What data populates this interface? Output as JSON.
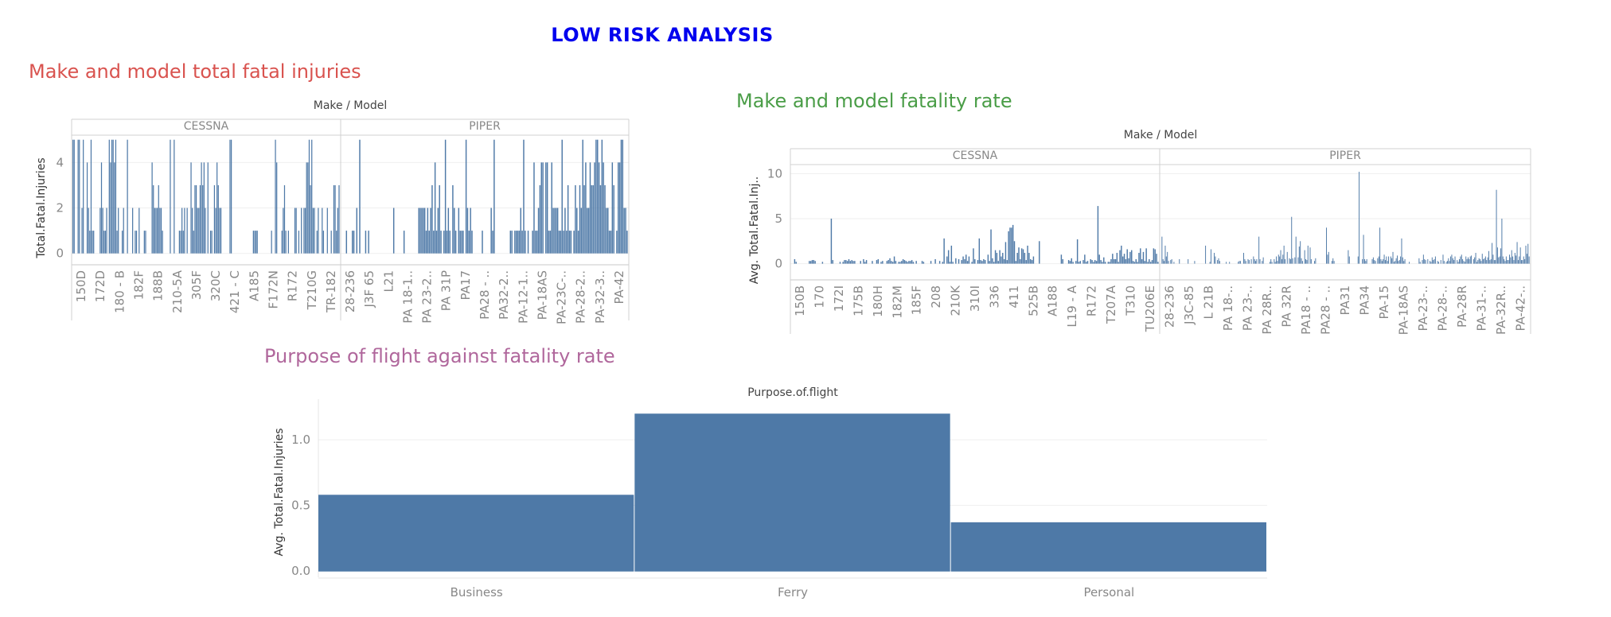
{
  "page": {
    "title": "LOW RISK ANALYSIS"
  },
  "colors": {
    "title": "#0000ee",
    "chart1_title": "#d9534f",
    "chart2_title": "#4a9d47",
    "chart3_title": "#b0679c",
    "bar": "#4e79a7"
  },
  "chart_data": [
    {
      "type": "bar",
      "title": "Make and model total fatal injuries",
      "column_header": "Make / Model",
      "ylabel": "Total.Fatal.Injuries",
      "ylim": [
        -0.5,
        5.2
      ],
      "yticks": [
        0,
        2,
        4
      ],
      "grid": true,
      "panes": [
        {
          "name": "CESSNA",
          "tick_labels": [
            "150D",
            "172D",
            "180 - B",
            "182F",
            "188B",
            "210-5A",
            "305F",
            "320C",
            "421 - C",
            "A185",
            "F172N",
            "R172",
            "T210G",
            "TR-182"
          ],
          "values": [
            5,
            5,
            0,
            0,
            5,
            5,
            0,
            2,
            5,
            0,
            0,
            4,
            2,
            1,
            5,
            1,
            1,
            0,
            0,
            0,
            0,
            2,
            4,
            2,
            1,
            1,
            2,
            0,
            5,
            4,
            5,
            5,
            4,
            5,
            1,
            2,
            0,
            0,
            1,
            2,
            0,
            0,
            5,
            0,
            0,
            0,
            2,
            0,
            1,
            1,
            0,
            2,
            0,
            0,
            0,
            1,
            1,
            0,
            0,
            0,
            0,
            4,
            3,
            2,
            2,
            2,
            3,
            2,
            2,
            1,
            0,
            0,
            0,
            0,
            0,
            5,
            0,
            0,
            5,
            0,
            0,
            0,
            1,
            1,
            2,
            1,
            2,
            0,
            2,
            0,
            0,
            4,
            2,
            1,
            3,
            3,
            2,
            2,
            3,
            4,
            3,
            4,
            2,
            0,
            4,
            0,
            1,
            1,
            0,
            3,
            2,
            4,
            3,
            2,
            2,
            0,
            0,
            0,
            0,
            0,
            0,
            5,
            5,
            0,
            0,
            0,
            0,
            0,
            0,
            0,
            0,
            0,
            0,
            0,
            0,
            0,
            0,
            0,
            0,
            1,
            1,
            1,
            1,
            0,
            0,
            0,
            0,
            0,
            0,
            0,
            0,
            0,
            0,
            1,
            0,
            0,
            5,
            4,
            0,
            0,
            0,
            1,
            2,
            3,
            1,
            0,
            1,
            0,
            0,
            0,
            0,
            2,
            2,
            0,
            1,
            0,
            2,
            0,
            2,
            2,
            4,
            4,
            5,
            3,
            5,
            2,
            2,
            0,
            1,
            2,
            0,
            0,
            2,
            1,
            0,
            0,
            2,
            0,
            0,
            1,
            0,
            3,
            3,
            1,
            2,
            3
          ]
        },
        {
          "name": "PIPER",
          "tick_labels": [
            "28-236",
            "J3F 65",
            "L21",
            "PA 18-1..",
            "PA 23-2..",
            "PA 31P",
            "PA17",
            "PA28 - ..",
            "PA32-2..",
            "PA-12-1..",
            "PA-18AS",
            "PA-23C-..",
            "PA-28-2..",
            "PA-32-3..",
            "PA-42"
          ],
          "values": [
            0,
            0,
            0,
            1,
            0,
            0,
            0,
            1,
            1,
            0,
            2,
            0,
            5,
            0,
            0,
            0,
            1,
            0,
            1,
            0,
            0,
            0,
            0,
            0,
            0,
            0,
            0,
            0,
            0,
            0,
            0,
            0,
            0,
            0,
            0,
            2,
            0,
            0,
            0,
            0,
            0,
            0,
            1,
            0,
            0,
            0,
            0,
            0,
            0,
            0,
            0,
            0,
            2,
            2,
            2,
            2,
            2,
            1,
            2,
            1,
            2,
            3,
            1,
            4,
            1,
            2,
            3,
            1,
            0,
            1,
            5,
            1,
            2,
            1,
            0,
            3,
            2,
            1,
            0,
            2,
            1,
            1,
            1,
            0,
            5,
            2,
            1,
            2,
            1,
            0,
            0,
            0,
            0,
            0,
            0,
            1,
            0,
            0,
            0,
            0,
            0,
            2,
            1,
            5,
            0,
            0,
            0,
            0,
            0,
            0,
            0,
            0,
            0,
            0,
            1,
            1,
            0,
            1,
            1,
            1,
            1,
            2,
            1,
            5,
            1,
            0,
            1,
            0,
            0,
            1,
            4,
            1,
            1,
            2,
            3,
            4,
            4,
            0,
            4,
            4,
            1,
            1,
            4,
            2,
            2,
            2,
            2,
            1,
            1,
            5,
            1,
            2,
            1,
            3,
            1,
            1,
            0,
            1,
            3,
            2,
            1,
            3,
            2,
            5,
            3,
            4,
            2,
            2,
            4,
            3,
            3,
            4,
            5,
            5,
            4,
            3,
            5,
            4,
            3,
            2,
            2,
            1,
            1,
            4,
            3,
            0,
            1,
            4,
            4,
            5,
            5,
            2,
            2,
            1
          ]
        }
      ]
    },
    {
      "type": "bar",
      "title": "Make and model fatality rate",
      "column_header": "Make / Model",
      "ylabel": "Avg. Total.Fatal.Inj..",
      "ylim": [
        -1.8,
        11
      ],
      "yticks": [
        0,
        5,
        10
      ],
      "grid": true,
      "panes": [
        {
          "name": "CESSNA",
          "tick_labels": [
            "150B",
            "170",
            "172I",
            "175B",
            "180H",
            "182M",
            "185F",
            "208",
            "210K",
            "310I",
            "336",
            "411",
            "525B",
            "A188",
            "L19 - A",
            "R172",
            "T207A",
            "T310",
            "TU206E"
          ],
          "values": [
            0,
            0,
            0.5,
            0.2,
            0,
            0,
            0,
            0,
            0,
            0,
            0,
            0,
            0.3,
            0.3,
            0.4,
            0.4,
            0.3,
            0,
            0,
            0,
            0,
            0.2,
            0,
            0,
            0,
            0,
            0,
            5,
            0.4,
            0,
            0,
            0,
            0,
            0.2,
            0,
            0.2,
            0.4,
            0.4,
            0.3,
            0.5,
            0.3,
            0.4,
            0.3,
            0.3,
            0,
            0,
            0,
            0.3,
            0,
            0.5,
            0.2,
            0.4,
            0,
            0,
            0,
            0.3,
            0,
            0,
            0.4,
            0.5,
            0,
            0.2,
            0.3,
            0,
            0,
            0.3,
            0.4,
            0.6,
            0.3,
            0.2,
            0.8,
            0.3,
            0,
            0.2,
            0.2,
            0.3,
            0.5,
            0.4,
            0.3,
            0.2,
            0.3,
            0.3,
            0.4,
            0.2,
            0,
            0.3,
            0,
            0,
            0,
            0.3,
            0.2,
            0,
            0,
            0,
            0,
            0.3,
            0,
            0,
            0.5,
            0,
            0,
            0.3,
            0,
            0.2,
            2.8,
            0,
            0.8,
            1.5,
            0.2,
            2,
            0.2,
            0,
            0.6,
            0,
            0.5,
            0,
            0.4,
            0.8,
            0.5,
            1,
            0.3,
            0.8,
            0,
            0.2,
            1.7,
            0.5,
            0,
            0.4,
            2.8,
            0.4,
            0.3,
            0.5,
            0.4,
            0,
            1,
            0.3,
            3.8,
            0.6,
            0.2,
            1.5,
            1.2,
            0.3,
            1.5,
            0.8,
            1.2,
            0.5,
            2.4,
            0.4,
            3.6,
            4,
            4,
            4.3,
            2.5,
            0.3,
            1.2,
            1.8,
            0.5,
            1.7,
            1.6,
            1.2,
            0.4,
            2,
            1.2,
            0.5,
            0.4,
            0.8,
            0,
            0,
            0,
            2.5,
            0,
            0,
            0,
            0,
            0,
            0,
            0,
            0,
            0,
            0,
            0,
            0,
            0,
            0,
            1,
            0.5,
            0,
            0,
            0,
            0.4,
            0.3,
            0.6,
            0.2,
            0,
            0.3,
            2.7,
            0.2,
            0.3,
            0,
            0.4,
            1,
            0.2,
            0.3,
            0,
            0.5,
            0.4,
            0.2,
            0.4,
            0.3,
            6.4,
            1,
            0.4,
            0.2,
            0.7,
            0.2,
            0,
            0.2,
            0.2,
            0.5,
            1.1,
            0.5,
            0.5,
            1.2,
            0.2,
            1.5,
            2,
            0.8,
            1.1,
            0.5,
            1.6,
            0.6,
            1.3,
            1.5,
            0.3,
            0.2,
            0.5,
            0.2,
            1.2,
            1.7,
            0.5,
            1.3,
            0.3,
            1.7,
            0.2,
            0.5,
            0.2,
            0.4,
            1.7,
            1.6,
            1.1,
            0.2
          ]
        },
        {
          "name": "PIPER",
          "tick_labels": [
            "28-236",
            "J3C-85",
            "L 21B",
            "PA 18-..",
            "PA 23-..",
            "PA 28R..",
            "PA 32R",
            "PA18 - ..",
            "PA28 - ..",
            "PA31",
            "PA34",
            "PA-15",
            "PA-18AS",
            "PA-23-..",
            "PA-28-..",
            "PA-28R",
            "PA-31-..",
            "PA-32R..",
            "PA-42-.."
          ],
          "values": [
            0,
            3,
            0.5,
            0.3,
            2,
            0.8,
            1.3,
            0.3,
            0,
            0.4,
            0.5,
            0,
            0.2,
            0,
            0,
            0,
            0,
            0.5,
            0,
            0,
            0,
            0,
            0,
            0,
            0,
            0.5,
            0,
            0,
            0,
            0,
            0,
            0.3,
            0,
            0,
            0,
            0,
            0,
            0,
            0,
            0,
            0,
            2,
            0,
            0,
            0,
            0.2,
            1.6,
            0,
            0,
            1.2,
            0.8,
            0,
            0.4,
            0.6,
            0.3,
            0,
            0,
            0,
            0,
            0,
            0.2,
            0,
            0,
            0.2,
            0,
            0,
            0,
            0,
            0,
            0,
            0,
            0.2,
            0.3,
            0.3,
            0,
            0,
            1.2,
            0.5,
            0.3,
            0,
            0.5,
            0.4,
            0,
            0.5,
            0,
            0.8,
            0.5,
            0.3,
            0.5,
            0,
            3,
            0.5,
            0,
            0.3,
            0.7,
            0,
            0,
            0,
            0,
            0,
            0.2,
            0.5,
            0.2,
            0,
            0.5,
            0.2,
            0.8,
            0.3,
            1,
            0.8,
            1.5,
            0.5,
            1,
            2,
            0.5,
            0,
            1.3,
            0,
            0.6,
            0.5,
            5.2,
            0.6,
            0,
            0.7,
            3,
            0,
            0.7,
            1.9,
            2.5,
            0.6,
            0.3,
            0,
            1.5,
            0.5,
            0.4,
            2,
            0,
            1.8,
            0.5,
            0,
            0,
            0.3,
            0.6,
            0,
            0,
            0,
            0,
            0,
            0,
            0,
            0,
            0,
            4,
            1,
            1.3,
            0,
            0,
            0.3,
            0.6,
            0.3,
            0,
            0,
            0,
            0,
            0,
            0,
            0,
            0,
            0,
            0,
            0,
            0,
            1.5,
            0.8,
            0,
            0,
            0,
            0,
            0,
            0,
            0,
            0.8,
            10.2,
            0,
            0,
            0.5,
            3.2,
            0.5,
            0.3,
            0.5,
            0,
            0,
            0,
            0,
            0.5,
            0.7,
            0.4,
            0.3,
            0,
            0.6,
            0.8,
            4,
            0.5,
            0.3,
            0.5,
            1,
            0.4,
            0.8,
            0.3,
            0.8,
            0,
            0.8,
            0.6,
            1.3,
            0.2,
            0.3,
            0.6,
            0.9,
            0.3,
            0.4,
            0.8,
            2.8,
            0.7,
            0.3,
            0.5,
            0,
            0,
            0,
            0.2,
            0,
            0,
            0,
            0,
            0,
            0,
            0,
            0,
            0.6,
            0.2,
            0,
            0.4,
            1,
            0.5,
            0.4,
            0,
            0.5,
            0,
            0.3,
            0.2,
            0.7,
            0.4,
            0.5,
            0.8,
            0,
            0.3,
            0.2,
            0,
            0.4,
            0,
            1,
            0.3,
            0,
            0.2,
            0.3,
            0.6,
            0.3,
            0.8,
            1,
            0.6,
            0.4,
            0.8,
            0,
            0.4,
            0.2,
            0.5,
            0.8,
            1,
            0.5,
            0.3,
            0.2,
            0.8,
            0.5,
            0.7,
            0.5,
            0.8,
            0.9,
            0,
            0.5,
            0.7,
            1.2,
            0.2,
            0.4,
            0.6,
            0.5,
            0.3,
            1.1,
            0.5,
            0.6,
            0.8,
            0.4,
            0.7,
            1.4,
            0.4,
            0.5,
            2.3,
            1,
            0.4,
            0.4,
            8.2,
            1.8,
            0.7,
            0.8,
            1.7,
            5,
            0.8,
            0.5,
            0.3,
            0.8,
            0.4,
            0.4,
            1,
            0.7,
            1.5,
            0.8,
            0.4,
            1.2,
            0.9,
            2.4,
            0.4,
            0.8,
            1.8,
            0.4,
            0.4,
            0.8,
            0.5,
            2,
            1.1,
            2.2,
            0.8
          ]
        }
      ]
    },
    {
      "type": "bar",
      "title": "Purpose of flight against fatality rate",
      "column_header": "Purpose.of.flight",
      "ylabel": "Avg. Total.Fatal.Injuries",
      "ylim": [
        -0.05,
        1.25
      ],
      "yticks": [
        0.0,
        0.5,
        1.0
      ],
      "ytick_labels": [
        "0.0",
        "0.5",
        "1.0"
      ],
      "grid": true,
      "categories": [
        "Business",
        "Ferry",
        "Personal"
      ],
      "values": [
        0.58,
        1.2,
        0.37
      ]
    }
  ]
}
